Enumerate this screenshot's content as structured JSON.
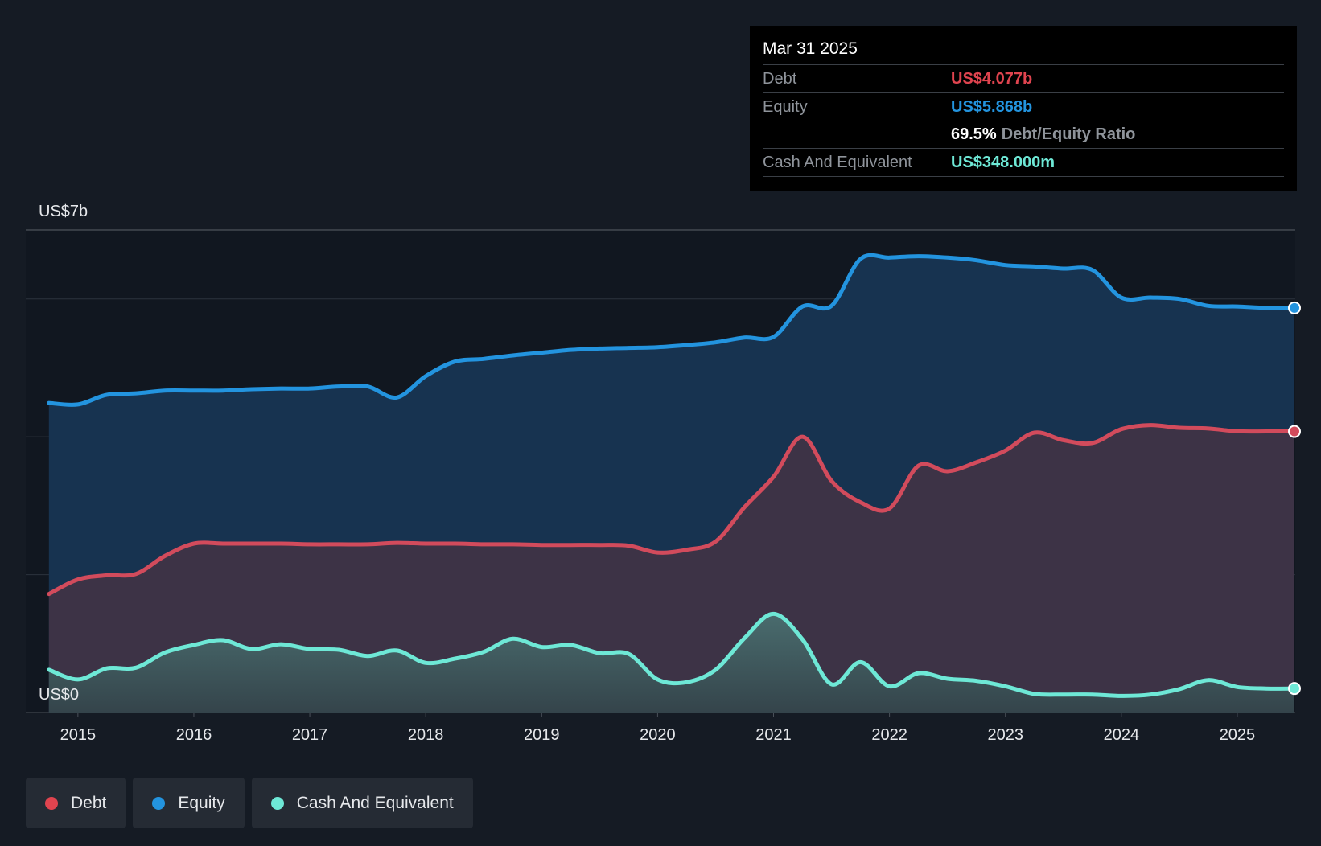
{
  "colors": {
    "debt": "#e0444f",
    "equity": "#2394df",
    "cash": "#6ee8d6",
    "background": "#151b24"
  },
  "tooltip": {
    "date": "Mar 31 2025",
    "debt_label": "Debt",
    "debt_value": "US$4.077b",
    "equity_label": "Equity",
    "equity_value": "US$5.868b",
    "ratio_value": "69.5%",
    "ratio_label": "Debt/Equity Ratio",
    "cash_label": "Cash And Equivalent",
    "cash_value": "US$348.000m"
  },
  "legend": [
    {
      "label": "Debt",
      "color": "#e0444f"
    },
    {
      "label": "Equity",
      "color": "#2394df"
    },
    {
      "label": "Cash And Equivalent",
      "color": "#6ee8d6"
    }
  ],
  "chart_data": {
    "type": "area",
    "title": "",
    "xlabel": "",
    "ylabel": "",
    "y_top_label": "US$7b",
    "y_bottom_label": "US$0",
    "ylim": [
      0,
      7
    ],
    "xlim": [
      2014.55,
      2025.5
    ],
    "gridlines": [
      2,
      4,
      6,
      7
    ],
    "x_ticks": [
      2015,
      2016,
      2017,
      2018,
      2019,
      2020,
      2021,
      2022,
      2023,
      2024,
      2025
    ],
    "x_tick_labels": [
      "2015",
      "2016",
      "2017",
      "2018",
      "2019",
      "2020",
      "2021",
      "2022",
      "2023",
      "2024",
      "2025"
    ],
    "series": [
      {
        "name": "Equity",
        "points": [
          [
            2014.75,
            4.49
          ],
          [
            2015.0,
            4.47
          ],
          [
            2015.25,
            4.61
          ],
          [
            2015.5,
            4.63
          ],
          [
            2015.75,
            4.67
          ],
          [
            2016.0,
            4.67
          ],
          [
            2016.25,
            4.67
          ],
          [
            2016.5,
            4.69
          ],
          [
            2016.75,
            4.7
          ],
          [
            2017.0,
            4.7
          ],
          [
            2017.25,
            4.73
          ],
          [
            2017.5,
            4.73
          ],
          [
            2017.75,
            4.57
          ],
          [
            2018.0,
            4.88
          ],
          [
            2018.25,
            5.09
          ],
          [
            2018.5,
            5.13
          ],
          [
            2018.75,
            5.18
          ],
          [
            2019.0,
            5.22
          ],
          [
            2019.25,
            5.26
          ],
          [
            2019.5,
            5.28
          ],
          [
            2019.75,
            5.29
          ],
          [
            2020.0,
            5.3
          ],
          [
            2020.25,
            5.33
          ],
          [
            2020.5,
            5.37
          ],
          [
            2020.75,
            5.44
          ],
          [
            2021.0,
            5.45
          ],
          [
            2021.25,
            5.89
          ],
          [
            2021.5,
            5.9
          ],
          [
            2021.75,
            6.58
          ],
          [
            2022.0,
            6.6
          ],
          [
            2022.25,
            6.62
          ],
          [
            2022.5,
            6.6
          ],
          [
            2022.75,
            6.56
          ],
          [
            2023.0,
            6.49
          ],
          [
            2023.25,
            6.47
          ],
          [
            2023.5,
            6.44
          ],
          [
            2023.75,
            6.42
          ],
          [
            2024.0,
            6.02
          ],
          [
            2024.25,
            6.02
          ],
          [
            2024.5,
            6.0
          ],
          [
            2024.75,
            5.9
          ],
          [
            2025.0,
            5.89
          ],
          [
            2025.25,
            5.87
          ]
        ]
      },
      {
        "name": "Debt",
        "points": [
          [
            2014.75,
            1.72
          ],
          [
            2015.0,
            1.93
          ],
          [
            2015.25,
            1.99
          ],
          [
            2015.5,
            2.01
          ],
          [
            2015.75,
            2.27
          ],
          [
            2016.0,
            2.45
          ],
          [
            2016.25,
            2.45
          ],
          [
            2016.5,
            2.45
          ],
          [
            2016.75,
            2.45
          ],
          [
            2017.0,
            2.44
          ],
          [
            2017.25,
            2.44
          ],
          [
            2017.5,
            2.44
          ],
          [
            2017.75,
            2.46
          ],
          [
            2018.0,
            2.45
          ],
          [
            2018.25,
            2.45
          ],
          [
            2018.5,
            2.44
          ],
          [
            2018.75,
            2.44
          ],
          [
            2019.0,
            2.43
          ],
          [
            2019.25,
            2.43
          ],
          [
            2019.5,
            2.43
          ],
          [
            2019.75,
            2.42
          ],
          [
            2020.0,
            2.32
          ],
          [
            2020.25,
            2.36
          ],
          [
            2020.5,
            2.48
          ],
          [
            2020.75,
            2.98
          ],
          [
            2021.0,
            3.42
          ],
          [
            2021.25,
            4.0
          ],
          [
            2021.5,
            3.36
          ],
          [
            2021.75,
            3.05
          ],
          [
            2022.0,
            2.96
          ],
          [
            2022.25,
            3.58
          ],
          [
            2022.5,
            3.5
          ],
          [
            2022.75,
            3.63
          ],
          [
            2023.0,
            3.8
          ],
          [
            2023.25,
            4.06
          ],
          [
            2023.5,
            3.95
          ],
          [
            2023.75,
            3.91
          ],
          [
            2024.0,
            4.11
          ],
          [
            2024.25,
            4.17
          ],
          [
            2024.5,
            4.13
          ],
          [
            2024.75,
            4.12
          ],
          [
            2025.0,
            4.08
          ],
          [
            2025.25,
            4.077
          ]
        ]
      },
      {
        "name": "Cash And Equivalent",
        "points": [
          [
            2014.75,
            0.62
          ],
          [
            2015.0,
            0.48
          ],
          [
            2015.25,
            0.64
          ],
          [
            2015.5,
            0.65
          ],
          [
            2015.75,
            0.87
          ],
          [
            2016.0,
            0.98
          ],
          [
            2016.25,
            1.05
          ],
          [
            2016.5,
            0.92
          ],
          [
            2016.75,
            0.99
          ],
          [
            2017.0,
            0.92
          ],
          [
            2017.25,
            0.91
          ],
          [
            2017.5,
            0.82
          ],
          [
            2017.75,
            0.9
          ],
          [
            2018.0,
            0.72
          ],
          [
            2018.25,
            0.78
          ],
          [
            2018.5,
            0.88
          ],
          [
            2018.75,
            1.07
          ],
          [
            2019.0,
            0.95
          ],
          [
            2019.25,
            0.98
          ],
          [
            2019.5,
            0.86
          ],
          [
            2019.75,
            0.85
          ],
          [
            2020.0,
            0.48
          ],
          [
            2020.25,
            0.44
          ],
          [
            2020.5,
            0.62
          ],
          [
            2020.75,
            1.08
          ],
          [
            2021.0,
            1.43
          ],
          [
            2021.25,
            1.06
          ],
          [
            2021.5,
            0.41
          ],
          [
            2021.75,
            0.73
          ],
          [
            2022.0,
            0.38
          ],
          [
            2022.25,
            0.57
          ],
          [
            2022.5,
            0.49
          ],
          [
            2022.75,
            0.46
          ],
          [
            2023.0,
            0.38
          ],
          [
            2023.25,
            0.27
          ],
          [
            2023.5,
            0.26
          ],
          [
            2023.75,
            0.26
          ],
          [
            2024.0,
            0.24
          ],
          [
            2024.25,
            0.26
          ],
          [
            2024.5,
            0.34
          ],
          [
            2024.75,
            0.47
          ],
          [
            2025.0,
            0.37
          ],
          [
            2025.25,
            0.348
          ]
        ]
      }
    ]
  }
}
